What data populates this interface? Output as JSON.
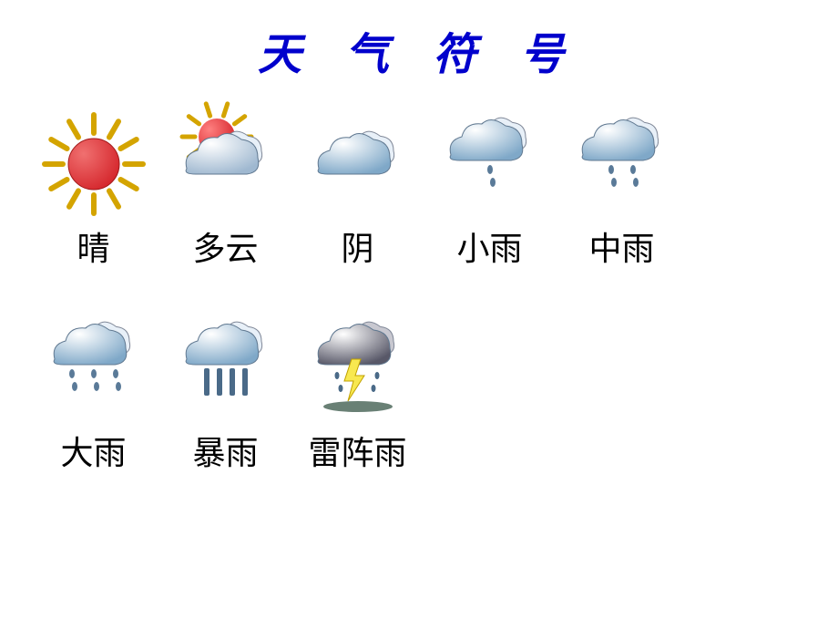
{
  "title": "天 气 符 号",
  "title_color": "#0000cc",
  "title_fontsize": 48,
  "title_style": "italic bold",
  "label_fontsize": 36,
  "label_color": "#000000",
  "background_color": "#ffffff",
  "icons": [
    {
      "id": "sunny",
      "label": "晴",
      "type": "sun",
      "sun_fill": "#d4242a",
      "sun_highlight": "#f07070",
      "ray_color": "#d4a400",
      "ray_count": 12
    },
    {
      "id": "cloudy",
      "label": "多云",
      "type": "sun-cloud",
      "sun_fill": "#d4242a",
      "ray_color": "#d4a400",
      "cloud_fill_top": "#e8f0f8",
      "cloud_fill_main": "#9fb8d0",
      "cloud_highlight": "#ffffff"
    },
    {
      "id": "overcast",
      "label": "阴",
      "type": "cloud",
      "cloud_fill_top": "#e8f0f8",
      "cloud_fill_main": "#7fa8c8",
      "cloud_highlight": "#ffffff"
    },
    {
      "id": "light-rain",
      "label": "小雨",
      "type": "cloud-rain",
      "cloud_fill_top": "#e8f0f8",
      "cloud_fill_main": "#7fa8c8",
      "drop_color": "#5a7a98",
      "drop_count": 1,
      "drop_style": "scatter"
    },
    {
      "id": "moderate-rain",
      "label": "中雨",
      "type": "cloud-rain",
      "cloud_fill_top": "#e8f0f8",
      "cloud_fill_main": "#7fa8c8",
      "drop_color": "#5a7a98",
      "drop_count": 2,
      "drop_style": "scatter"
    },
    {
      "id": "heavy-rain",
      "label": "大雨",
      "type": "cloud-rain",
      "cloud_fill_top": "#e8f0f8",
      "cloud_fill_main": "#7fa8c8",
      "drop_color": "#5a7a98",
      "drop_count": 3,
      "drop_style": "scatter"
    },
    {
      "id": "storm-rain",
      "label": "暴雨",
      "type": "cloud-rain",
      "cloud_fill_top": "#e8f0f8",
      "cloud_fill_main": "#7fa8c8",
      "drop_color": "#4a6a88",
      "drop_count": 4,
      "drop_style": "bars"
    },
    {
      "id": "thunderstorm",
      "label": "雷阵雨",
      "type": "thunderstorm",
      "cloud_fill_top": "#c8c8d0",
      "cloud_fill_main": "#585868",
      "cloud_dark": "#303040",
      "lightning_color": "#f8e850",
      "drop_color": "#4a6a88",
      "shadow_color": "#2a4a3a"
    }
  ]
}
